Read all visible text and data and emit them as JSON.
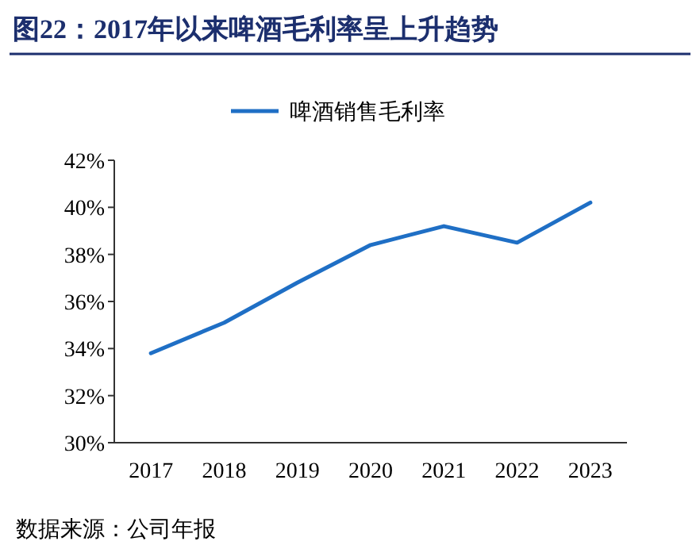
{
  "chart_data": {
    "type": "line",
    "title": "图22：2017年以来啤酒毛利率呈上升趋势",
    "categories": [
      "2017",
      "2018",
      "2019",
      "2020",
      "2021",
      "2022",
      "2023"
    ],
    "series": [
      {
        "name": "啤酒销售毛利率",
        "color": "#1f6fc5",
        "values": [
          33.8,
          35.1,
          36.8,
          38.4,
          39.2,
          38.5,
          40.2
        ]
      }
    ],
    "ylim": [
      30,
      42
    ],
    "yticks": [
      {
        "value": 30,
        "label": "30%"
      },
      {
        "value": 32,
        "label": "32%"
      },
      {
        "value": 34,
        "label": "34%"
      },
      {
        "value": 36,
        "label": "36%"
      },
      {
        "value": 38,
        "label": "38%"
      },
      {
        "value": 40,
        "label": "40%"
      },
      {
        "value": 42,
        "label": "42%"
      }
    ],
    "grid": false,
    "legend": "top",
    "marker": "none",
    "line_style": "solid",
    "annotations": [
      "数据来源：公司年报"
    ]
  }
}
